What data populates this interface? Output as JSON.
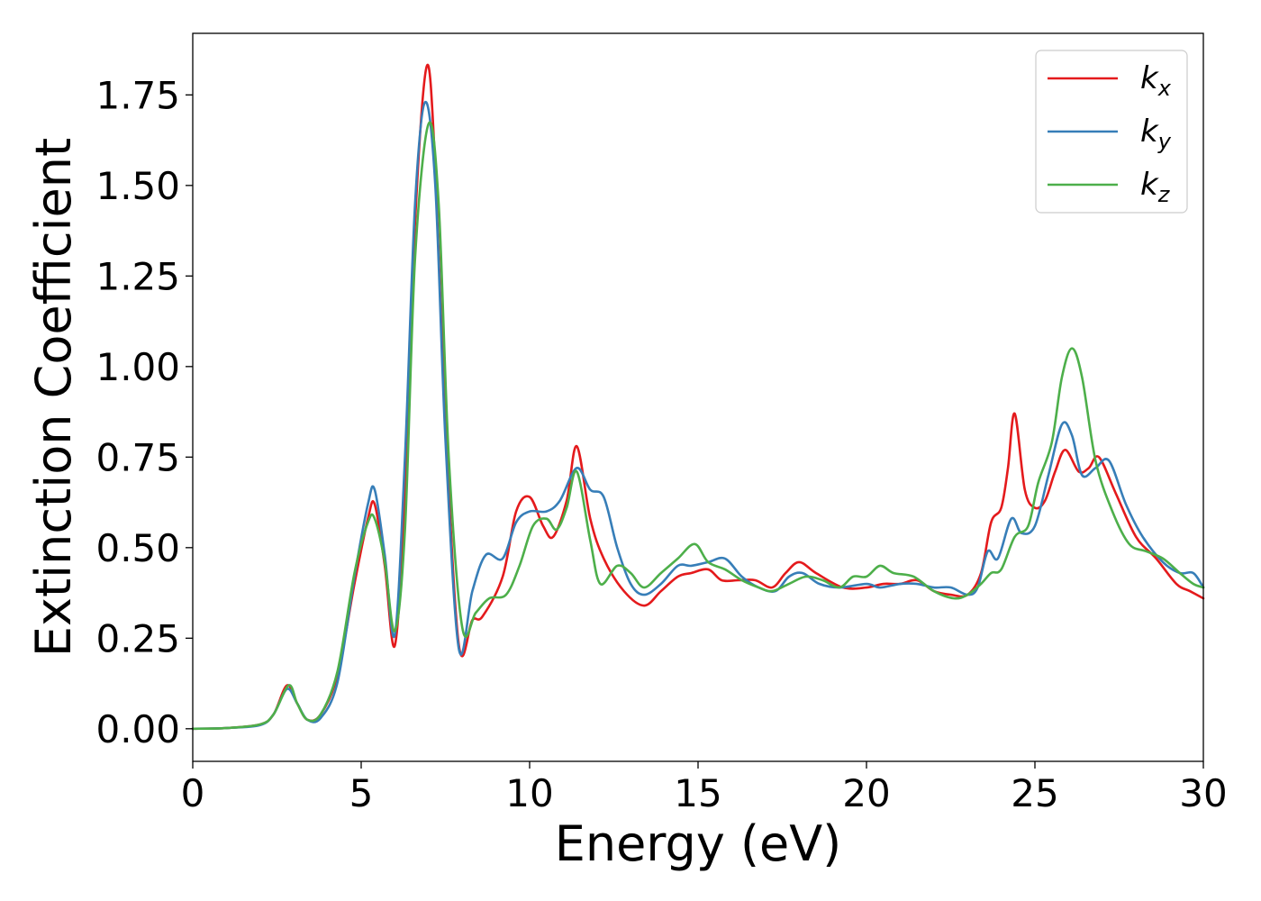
{
  "chart_data": {
    "type": "line",
    "title": "",
    "xlabel": "Energy (eV)",
    "ylabel": "Extinction Coefficient",
    "xlim": [
      0,
      30
    ],
    "ylim": [
      -0.09,
      1.92
    ],
    "xticks": [
      0,
      5,
      10,
      15,
      20,
      25,
      30
    ],
    "xtick_labels": [
      "0",
      "5",
      "10",
      "15",
      "20",
      "25",
      "30"
    ],
    "yticks": [
      0.0,
      0.25,
      0.5,
      0.75,
      1.0,
      1.25,
      1.5,
      1.75
    ],
    "ytick_labels": [
      "0.00",
      "0.25",
      "0.50",
      "0.75",
      "1.00",
      "1.25",
      "1.50",
      "1.75"
    ],
    "grid": false,
    "legend_position": "top-right",
    "series": [
      {
        "name": "k_x",
        "label_main": "k",
        "label_sub": "x",
        "color": "#e41a1c",
        "points": [
          [
            0,
            0
          ],
          [
            1,
            0.002
          ],
          [
            2,
            0.012
          ],
          [
            2.4,
            0.04
          ],
          [
            2.8,
            0.12
          ],
          [
            3.1,
            0.07
          ],
          [
            3.4,
            0.025
          ],
          [
            3.8,
            0.04
          ],
          [
            4.3,
            0.15
          ],
          [
            4.8,
            0.4
          ],
          [
            5.2,
            0.58
          ],
          [
            5.4,
            0.62
          ],
          [
            5.7,
            0.45
          ],
          [
            6,
            0.23
          ],
          [
            6.3,
            0.65
          ],
          [
            6.6,
            1.4
          ],
          [
            6.95,
            1.83
          ],
          [
            7.2,
            1.55
          ],
          [
            7.5,
            0.85
          ],
          [
            7.9,
            0.23
          ],
          [
            8.3,
            0.3
          ],
          [
            8.6,
            0.31
          ],
          [
            9.2,
            0.42
          ],
          [
            9.6,
            0.6
          ],
          [
            10,
            0.64
          ],
          [
            10.4,
            0.56
          ],
          [
            10.7,
            0.53
          ],
          [
            11.1,
            0.63
          ],
          [
            11.4,
            0.78
          ],
          [
            11.8,
            0.58
          ],
          [
            12.2,
            0.47
          ],
          [
            12.8,
            0.38
          ],
          [
            13.4,
            0.34
          ],
          [
            13.9,
            0.38
          ],
          [
            14.4,
            0.42
          ],
          [
            14.8,
            0.43
          ],
          [
            15.3,
            0.44
          ],
          [
            15.7,
            0.41
          ],
          [
            16.2,
            0.41
          ],
          [
            16.7,
            0.41
          ],
          [
            17.2,
            0.39
          ],
          [
            17.6,
            0.43
          ],
          [
            18,
            0.46
          ],
          [
            18.5,
            0.43
          ],
          [
            19.3,
            0.39
          ],
          [
            20,
            0.39
          ],
          [
            20.5,
            0.4
          ],
          [
            21,
            0.4
          ],
          [
            21.5,
            0.41
          ],
          [
            22,
            0.38
          ],
          [
            22.5,
            0.37
          ],
          [
            23,
            0.37
          ],
          [
            23.4,
            0.43
          ],
          [
            23.7,
            0.57
          ],
          [
            24,
            0.61
          ],
          [
            24.2,
            0.72
          ],
          [
            24.4,
            0.87
          ],
          [
            24.7,
            0.66
          ],
          [
            25,
            0.61
          ],
          [
            25.3,
            0.63
          ],
          [
            25.6,
            0.71
          ],
          [
            25.9,
            0.77
          ],
          [
            26.3,
            0.71
          ],
          [
            26.6,
            0.72
          ],
          [
            26.9,
            0.75
          ],
          [
            27.4,
            0.65
          ],
          [
            28,
            0.53
          ],
          [
            28.6,
            0.47
          ],
          [
            29.2,
            0.4
          ],
          [
            29.6,
            0.38
          ],
          [
            30,
            0.36
          ]
        ]
      },
      {
        "name": "k_y",
        "label_main": "k",
        "label_sub": "y",
        "color": "#377eb8",
        "points": [
          [
            0,
            0
          ],
          [
            1,
            0.002
          ],
          [
            2,
            0.01
          ],
          [
            2.4,
            0.04
          ],
          [
            2.8,
            0.11
          ],
          [
            3.1,
            0.07
          ],
          [
            3.4,
            0.025
          ],
          [
            3.8,
            0.03
          ],
          [
            4.3,
            0.13
          ],
          [
            4.8,
            0.42
          ],
          [
            5.2,
            0.62
          ],
          [
            5.4,
            0.66
          ],
          [
            5.7,
            0.48
          ],
          [
            6,
            0.26
          ],
          [
            6.3,
            0.75
          ],
          [
            6.6,
            1.45
          ],
          [
            6.9,
            1.73
          ],
          [
            7.2,
            1.5
          ],
          [
            7.5,
            0.8
          ],
          [
            7.9,
            0.22
          ],
          [
            8.3,
            0.38
          ],
          [
            8.7,
            0.48
          ],
          [
            9.2,
            0.47
          ],
          [
            9.6,
            0.57
          ],
          [
            10,
            0.6
          ],
          [
            10.5,
            0.6
          ],
          [
            10.9,
            0.63
          ],
          [
            11.4,
            0.72
          ],
          [
            11.8,
            0.66
          ],
          [
            12.2,
            0.64
          ],
          [
            12.6,
            0.5
          ],
          [
            13,
            0.4
          ],
          [
            13.4,
            0.37
          ],
          [
            13.9,
            0.4
          ],
          [
            14.4,
            0.45
          ],
          [
            14.8,
            0.45
          ],
          [
            15.3,
            0.46
          ],
          [
            15.8,
            0.47
          ],
          [
            16.3,
            0.42
          ],
          [
            16.8,
            0.39
          ],
          [
            17.3,
            0.38
          ],
          [
            17.7,
            0.42
          ],
          [
            18.1,
            0.43
          ],
          [
            18.6,
            0.4
          ],
          [
            19.2,
            0.39
          ],
          [
            20,
            0.4
          ],
          [
            20.4,
            0.39
          ],
          [
            21,
            0.4
          ],
          [
            21.5,
            0.4
          ],
          [
            22,
            0.39
          ],
          [
            22.5,
            0.39
          ],
          [
            23,
            0.37
          ],
          [
            23.3,
            0.39
          ],
          [
            23.6,
            0.49
          ],
          [
            23.9,
            0.47
          ],
          [
            24.3,
            0.58
          ],
          [
            24.6,
            0.54
          ],
          [
            25,
            0.56
          ],
          [
            25.4,
            0.7
          ],
          [
            25.8,
            0.84
          ],
          [
            26.1,
            0.81
          ],
          [
            26.4,
            0.7
          ],
          [
            26.8,
            0.72
          ],
          [
            27.2,
            0.74
          ],
          [
            27.7,
            0.62
          ],
          [
            28.2,
            0.53
          ],
          [
            28.8,
            0.46
          ],
          [
            29.3,
            0.43
          ],
          [
            29.7,
            0.43
          ],
          [
            30,
            0.39
          ]
        ]
      },
      {
        "name": "k_z",
        "label_main": "k",
        "label_sub": "z",
        "color": "#4daf4a",
        "points": [
          [
            0,
            0
          ],
          [
            1,
            0.002
          ],
          [
            2,
            0.012
          ],
          [
            2.4,
            0.04
          ],
          [
            2.85,
            0.12
          ],
          [
            3.1,
            0.07
          ],
          [
            3.4,
            0.025
          ],
          [
            3.8,
            0.04
          ],
          [
            4.3,
            0.16
          ],
          [
            4.8,
            0.43
          ],
          [
            5.2,
            0.57
          ],
          [
            5.4,
            0.58
          ],
          [
            5.7,
            0.46
          ],
          [
            6,
            0.27
          ],
          [
            6.3,
            0.55
          ],
          [
            6.6,
            1.3
          ],
          [
            7,
            1.67
          ],
          [
            7.3,
            1.45
          ],
          [
            7.6,
            0.75
          ],
          [
            8,
            0.28
          ],
          [
            8.4,
            0.32
          ],
          [
            8.8,
            0.36
          ],
          [
            9.3,
            0.37
          ],
          [
            9.7,
            0.45
          ],
          [
            10.1,
            0.56
          ],
          [
            10.5,
            0.58
          ],
          [
            10.8,
            0.55
          ],
          [
            11.1,
            0.61
          ],
          [
            11.4,
            0.71
          ],
          [
            11.8,
            0.52
          ],
          [
            12.1,
            0.4
          ],
          [
            12.6,
            0.45
          ],
          [
            13,
            0.43
          ],
          [
            13.4,
            0.39
          ],
          [
            13.9,
            0.43
          ],
          [
            14.4,
            0.47
          ],
          [
            14.9,
            0.51
          ],
          [
            15.3,
            0.46
          ],
          [
            15.8,
            0.44
          ],
          [
            16.3,
            0.41
          ],
          [
            16.8,
            0.39
          ],
          [
            17.2,
            0.38
          ],
          [
            17.7,
            0.4
          ],
          [
            18.2,
            0.42
          ],
          [
            18.7,
            0.41
          ],
          [
            19.2,
            0.39
          ],
          [
            19.6,
            0.42
          ],
          [
            20,
            0.42
          ],
          [
            20.4,
            0.45
          ],
          [
            20.8,
            0.43
          ],
          [
            21.4,
            0.42
          ],
          [
            22,
            0.38
          ],
          [
            22.6,
            0.36
          ],
          [
            23,
            0.37
          ],
          [
            23.4,
            0.4
          ],
          [
            23.7,
            0.43
          ],
          [
            24,
            0.44
          ],
          [
            24.4,
            0.53
          ],
          [
            24.8,
            0.56
          ],
          [
            25.1,
            0.68
          ],
          [
            25.5,
            0.79
          ],
          [
            25.8,
            0.97
          ],
          [
            26.1,
            1.05
          ],
          [
            26.4,
            0.97
          ],
          [
            26.8,
            0.74
          ],
          [
            27.3,
            0.6
          ],
          [
            27.8,
            0.51
          ],
          [
            28.3,
            0.49
          ],
          [
            28.8,
            0.47
          ],
          [
            29.3,
            0.43
          ],
          [
            29.7,
            0.4
          ],
          [
            30,
            0.39
          ]
        ]
      }
    ]
  }
}
